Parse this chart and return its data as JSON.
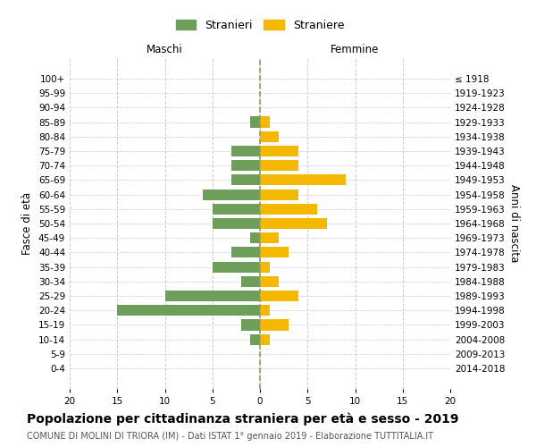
{
  "age_groups": [
    "0-4",
    "5-9",
    "10-14",
    "15-19",
    "20-24",
    "25-29",
    "30-34",
    "35-39",
    "40-44",
    "45-49",
    "50-54",
    "55-59",
    "60-64",
    "65-69",
    "70-74",
    "75-79",
    "80-84",
    "85-89",
    "90-94",
    "95-99",
    "100+"
  ],
  "birth_years": [
    "2014-2018",
    "2009-2013",
    "2004-2008",
    "1999-2003",
    "1994-1998",
    "1989-1993",
    "1984-1988",
    "1979-1983",
    "1974-1978",
    "1969-1973",
    "1964-1968",
    "1959-1963",
    "1954-1958",
    "1949-1953",
    "1944-1948",
    "1939-1943",
    "1934-1938",
    "1929-1933",
    "1924-1928",
    "1919-1923",
    "≤ 1918"
  ],
  "males": [
    0,
    0,
    1,
    2,
    15,
    10,
    2,
    5,
    3,
    1,
    5,
    5,
    6,
    3,
    3,
    3,
    0,
    1,
    0,
    0,
    0
  ],
  "females": [
    0,
    0,
    1,
    3,
    1,
    4,
    2,
    1,
    3,
    2,
    7,
    6,
    4,
    9,
    4,
    4,
    2,
    1,
    0,
    0,
    0
  ],
  "male_color": "#6d9e5a",
  "female_color": "#f5b800",
  "title": "Popolazione per cittadinanza straniera per età e sesso - 2019",
  "subtitle": "COMUNE DI MOLINI DI TRIORA (IM) - Dati ISTAT 1° gennaio 2019 - Elaborazione TUTTITALIA.IT",
  "xlabel_left": "Maschi",
  "xlabel_right": "Femmine",
  "ylabel_left": "Fasce di età",
  "ylabel_right": "Anni di nascita",
  "legend_male": "Stranieri",
  "legend_female": "Straniere",
  "xlim": 20,
  "bg_color": "#ffffff",
  "grid_color": "#cccccc",
  "bar_height": 0.75,
  "title_fontsize": 10,
  "subtitle_fontsize": 7,
  "axis_fontsize": 8.5,
  "tick_fontsize": 7.5,
  "legend_fontsize": 9
}
